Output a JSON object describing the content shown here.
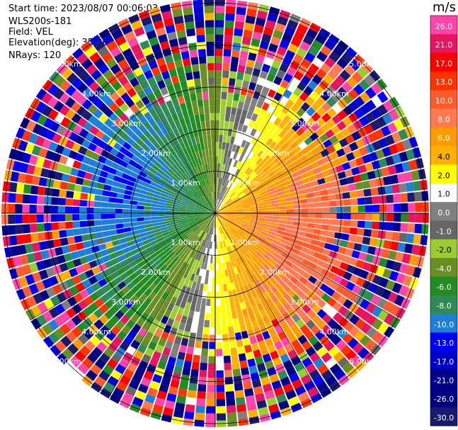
{
  "info": {
    "start_time": "Start time: 2023/08/07 00:06:03",
    "instrument": "WLS200s-181",
    "field": "Field: VEL",
    "elevation": "Elevation(deg): 35.30",
    "nrays": "NRays: 120"
  },
  "chart_data": {
    "type": "heatmap",
    "projection": "polar-ppi",
    "field": "VEL",
    "units": "m/s",
    "nrays": 120,
    "range_max_km": 5.1,
    "range_rings_km": [
      1,
      2,
      3,
      4,
      5
    ],
    "ring_labels": [
      "1.00km",
      "2.00km",
      "3.00km",
      "4.00km",
      "5.00km"
    ],
    "colorbar": {
      "label": "m/s",
      "ticks": [
        "26.0",
        "21.0",
        "17.0",
        "13.0",
        "10.0",
        "8.0",
        "6.0",
        "4.0",
        "2.0",
        "1.0",
        "0.0",
        "-1.0",
        "-2.0",
        "-4.0",
        "-6.0",
        "-8.0",
        "-10.0",
        "-13.0",
        "-17.0",
        "-21.0",
        "-26.0",
        "-30.0"
      ],
      "levels": [
        30,
        26,
        21,
        17,
        13,
        10,
        8,
        6,
        4,
        2,
        1,
        0,
        -1,
        -2,
        -4,
        -6,
        -8,
        -10,
        -13,
        -17,
        -21,
        -26,
        -30
      ],
      "colors": [
        "#ff44aa",
        "#e6155f",
        "#ff0000",
        "#ff3300",
        "#ff5c2e",
        "#ff7a50",
        "#ff9a00",
        "#ffb000",
        "#ffff00",
        "#ffffff",
        "#808080",
        "#666666",
        "#9acd32",
        "#6b8e23",
        "#228b22",
        "#2e8b57",
        "#1e7fd8",
        "#0000ff",
        "#0000cd",
        "#00008b",
        "#000080",
        "#191970"
      ]
    }
  }
}
